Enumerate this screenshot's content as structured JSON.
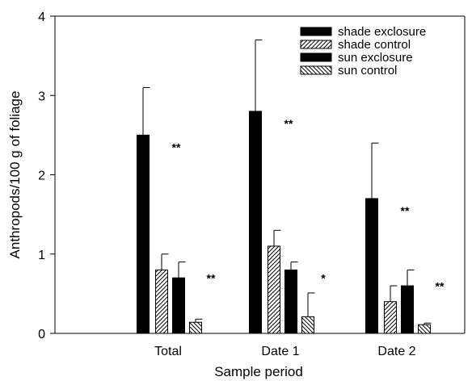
{
  "chart_data": {
    "type": "bar",
    "title": "",
    "xlabel": "Sample period",
    "ylabel": "Anthropods/100 g of foliage",
    "ylim": [
      0,
      4
    ],
    "yticks": [
      "0",
      "1",
      "2",
      "3",
      "4"
    ],
    "categories": [
      "Total",
      "Date 1",
      "Date 2"
    ],
    "legend_position": "top-right",
    "grid": false,
    "series": [
      {
        "name": "shade exclosure",
        "pattern": "solid",
        "values": [
          2.5,
          2.8,
          1.7
        ],
        "errors": [
          0.6,
          0.9,
          0.7
        ]
      },
      {
        "name": "shade control",
        "pattern": "hatch-forward",
        "values": [
          0.8,
          1.1,
          0.4
        ],
        "errors": [
          0.2,
          0.2,
          0.2
        ]
      },
      {
        "name": "sun exclosure",
        "pattern": "solid",
        "values": [
          0.7,
          0.8,
          0.6
        ],
        "errors": [
          0.2,
          0.1,
          0.2
        ]
      },
      {
        "name": "sun control",
        "pattern": "hatch-back",
        "values": [
          0.14,
          0.21,
          0.11
        ],
        "errors": [
          0.04,
          0.3,
          0.02
        ]
      }
    ],
    "annotations": [
      {
        "category": "Total",
        "between": "shade",
        "text": "**"
      },
      {
        "category": "Total",
        "between": "sun",
        "text": "**"
      },
      {
        "category": "Date 1",
        "between": "shade",
        "text": "**"
      },
      {
        "category": "Date 1",
        "between": "sun",
        "text": "*"
      },
      {
        "category": "Date 2",
        "between": "shade",
        "text": "**"
      },
      {
        "category": "Date 2",
        "between": "sun",
        "text": "**"
      }
    ]
  }
}
